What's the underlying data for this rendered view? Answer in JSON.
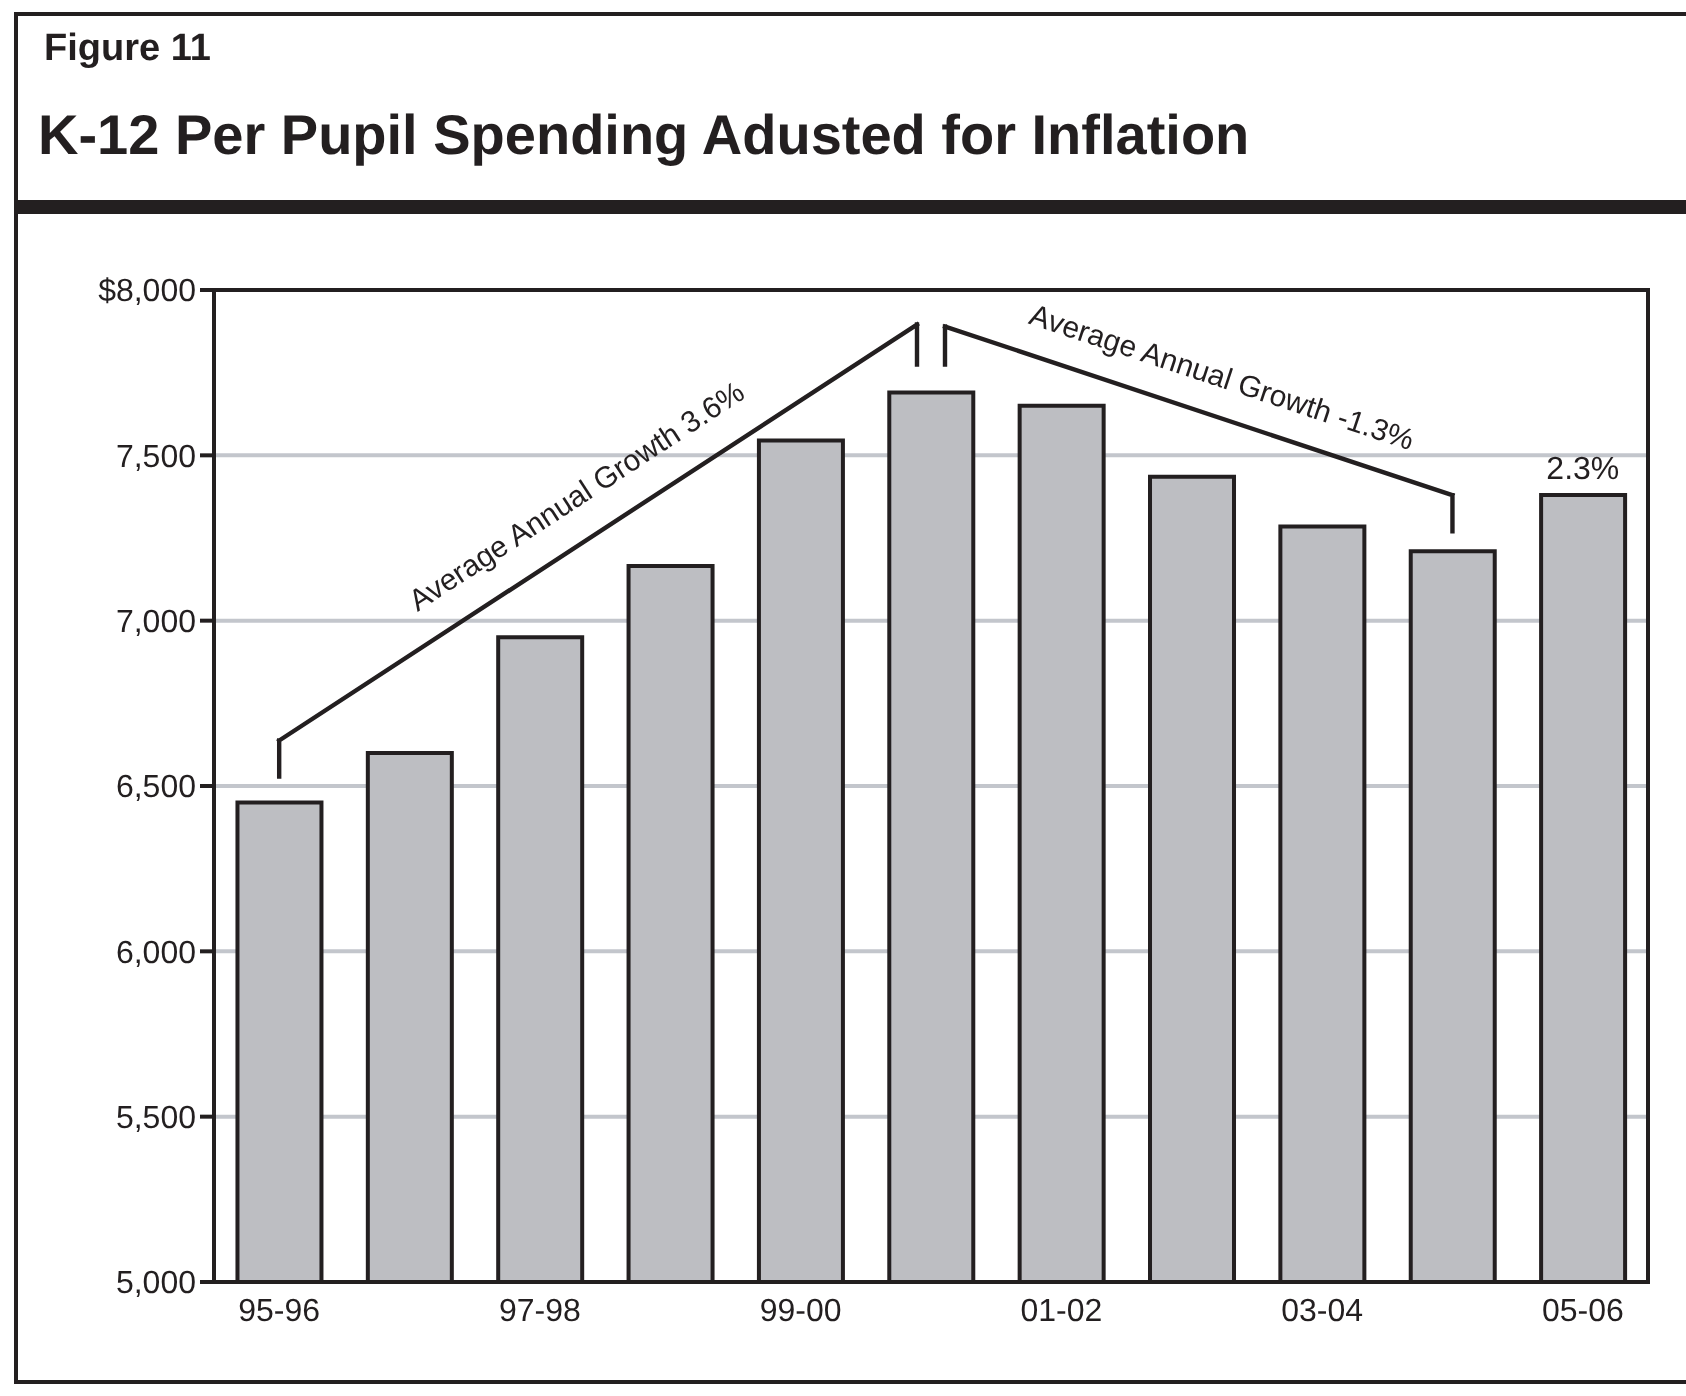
{
  "chart_data": {
    "type": "bar",
    "subtitle": "Figure 11",
    "title": "K-12 Per Pupil Spending Adusted for Inflation",
    "categories": [
      "95-96",
      null,
      "97-98",
      null,
      "99-00",
      null,
      "01-02",
      null,
      "03-04",
      null,
      "05-06"
    ],
    "values": [
      6450,
      6600,
      6950,
      7165,
      7545,
      7690,
      7650,
      7435,
      7285,
      7210,
      7380
    ],
    "color": "#bdbec2",
    "ylim": [
      5000,
      8000
    ],
    "yticks": [
      {
        "value": 5000,
        "label": "5,000"
      },
      {
        "value": 5500,
        "label": "5,500"
      },
      {
        "value": 6000,
        "label": "6,000"
      },
      {
        "value": 6500,
        "label": "6,500"
      },
      {
        "value": 7000,
        "label": "7,000"
      },
      {
        "value": 7500,
        "label": "7,500"
      },
      {
        "value": 8000,
        "label": "$8,000"
      }
    ],
    "grid": "y",
    "annotations": [
      "Average Annual Growth 3.6%",
      "Average Annual Growth -1.3%",
      {
        "text": "2.3%",
        "x": "05-06",
        "y": 7380
      }
    ]
  }
}
